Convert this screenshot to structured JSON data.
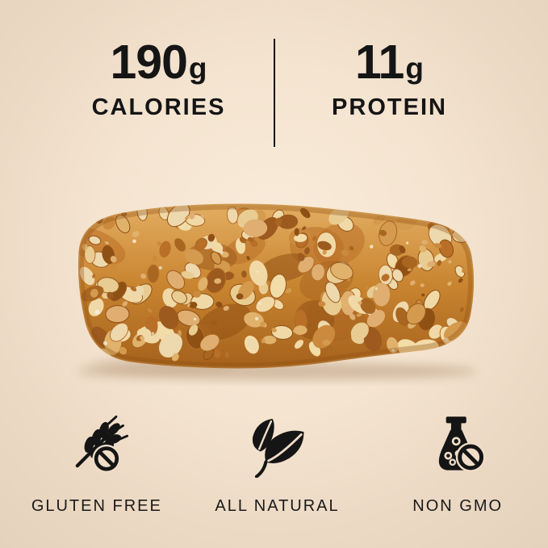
{
  "page": {
    "background_center": "#f9ecda",
    "background_edge": "#e5d2bc",
    "text_color": "#151515"
  },
  "stats": {
    "left": {
      "value": "190",
      "unit": "g",
      "label": "CALORIES"
    },
    "right": {
      "value": "11",
      "unit": "g",
      "label": "PROTEIN"
    },
    "divider_color": "#151515"
  },
  "product_photo": {
    "name": "peanut-granola-bar-photo",
    "base_top": "#e3ae62",
    "base_mid": "#c8842f",
    "base_bottom": "#a5611c",
    "palette_light": [
      "#f2dca8",
      "#eed8ad",
      "#e9cc92",
      "#f0d9a6"
    ],
    "palette_mid": [
      "#e0b26c",
      "#d49a4e",
      "#cb8a3d",
      "#dfae70"
    ],
    "palette_dark": [
      "#b96f28",
      "#a96621",
      "#9c5a1e",
      "#8f5014"
    ],
    "highlight": "#f8eed6",
    "shadow": "#bda083"
  },
  "badges": [
    {
      "icon": "wheat-crossed-icon",
      "label": "GLUTEN FREE"
    },
    {
      "icon": "leaves-icon",
      "label": "ALL NATURAL"
    },
    {
      "icon": "flask-crossed-icon",
      "label": "NON GMO"
    }
  ],
  "icon_color": "#151515",
  "icon_gap_color": "#efddc8"
}
